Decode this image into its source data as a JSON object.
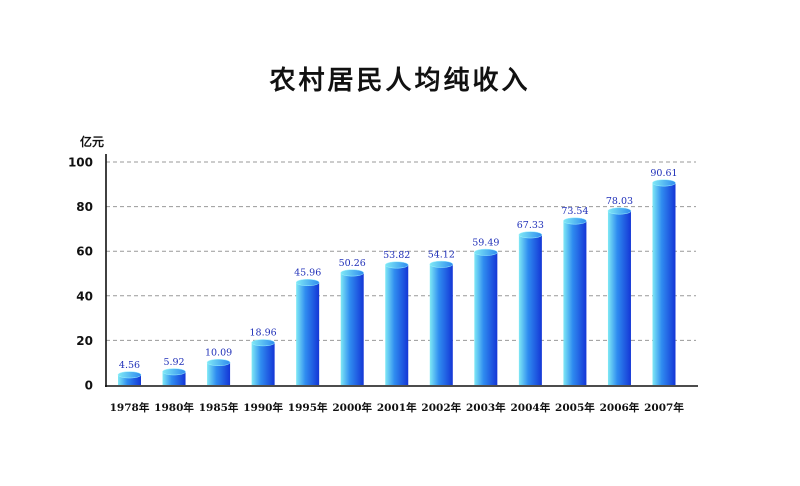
{
  "chart_data": {
    "type": "bar",
    "title": "农村居民人均纯收入",
    "ylabel": "亿元",
    "xlabel": "",
    "ylim": [
      0,
      100
    ],
    "yticks": [
      "0",
      "20",
      "40",
      "60",
      "80",
      "100"
    ],
    "grid": true,
    "categories": [
      "1978年",
      "1980年",
      "1985年",
      "1990年",
      "1995年",
      "2000年",
      "2001年",
      "2002年",
      "2003年",
      "2004年",
      "2005年",
      "2006年",
      "2007年"
    ],
    "values": [
      4.56,
      5.92,
      10.09,
      18.96,
      45.96,
      50.26,
      53.82,
      54.12,
      59.49,
      67.33,
      73.54,
      78.03,
      90.61
    ],
    "value_labels": [
      "4.56",
      "5.92",
      "10.09",
      "18.96",
      "45.96",
      "50.26",
      "53.82",
      "54.12",
      "59.49",
      "67.33",
      "73.54",
      "78.03",
      "90.61"
    ],
    "colors": {
      "bar_light": "#7fe9f5",
      "bar_mid": "#2f8cf0",
      "bar_dark": "#1436d6",
      "value_label": "#1f2fb8",
      "grid": "#999999",
      "axis": "#111111"
    }
  }
}
